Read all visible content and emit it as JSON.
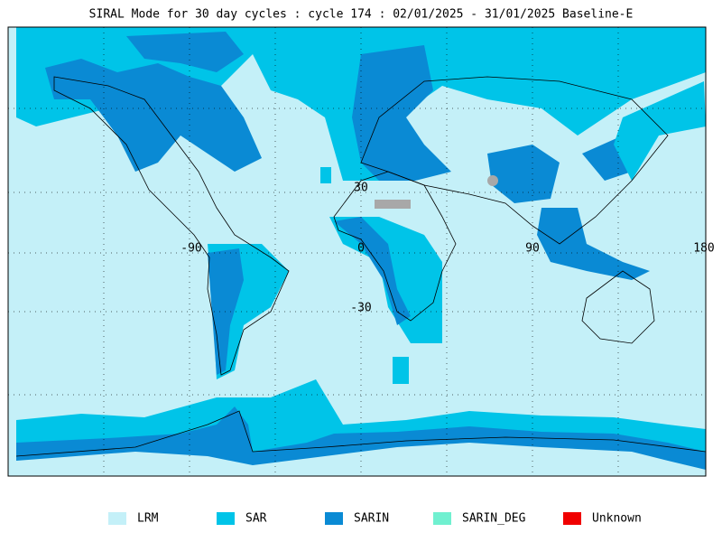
{
  "title": "SIRAL Mode for 30 day cycles : cycle 174 : 02/01/2025 - 31/01/2025 Baseline-E",
  "longitude_labels": [
    "-90",
    "0",
    "90",
    "180"
  ],
  "latitude_labels": [
    "30",
    "-30"
  ],
  "legend": [
    {
      "label": "LRM",
      "color": "#c4f0f8"
    },
    {
      "label": "SAR",
      "color": "#00c4e8"
    },
    {
      "label": "SARIN",
      "color": "#0a8ad4"
    },
    {
      "label": "SARIN_DEG",
      "color": "#70f0d0"
    },
    {
      "label": "Unknown",
      "color": "#f00000"
    }
  ]
}
